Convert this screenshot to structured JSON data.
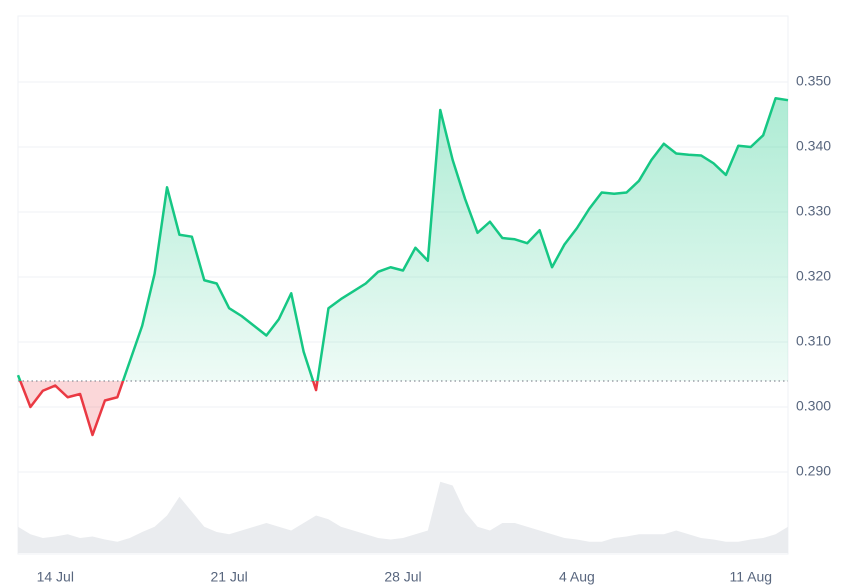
{
  "chart_data": {
    "type": "line",
    "categories": [
      null,
      null,
      null,
      "14 Jul",
      null,
      null,
      null,
      null,
      null,
      null,
      null,
      null,
      null,
      null,
      null,
      null,
      null,
      "21 Jul",
      null,
      null,
      null,
      null,
      null,
      null,
      null,
      null,
      null,
      null,
      null,
      null,
      null,
      "28 Jul",
      null,
      null,
      null,
      null,
      null,
      null,
      null,
      null,
      null,
      null,
      null,
      null,
      null,
      "4 Aug",
      null,
      null,
      null,
      null,
      null,
      null,
      null,
      null,
      null,
      null,
      null,
      null,
      null,
      "11 Aug",
      null,
      null,
      null
    ],
    "values": [
      0.3049,
      0.3,
      0.3025,
      0.3033,
      0.3015,
      0.302,
      0.2957,
      0.301,
      0.3015,
      0.307,
      0.3125,
      0.3205,
      0.3338,
      0.3265,
      0.3262,
      0.3195,
      0.319,
      0.3152,
      0.314,
      0.3125,
      0.311,
      0.3135,
      0.3175,
      0.3085,
      0.3026,
      0.3152,
      0.3166,
      0.3178,
      0.319,
      0.3208,
      0.3215,
      0.321,
      0.3245,
      0.3225,
      0.3457,
      0.338,
      0.332,
      0.3268,
      0.3285,
      0.326,
      0.3258,
      0.3252,
      0.3272,
      0.3215,
      0.325,
      0.3275,
      0.3305,
      0.333,
      0.3328,
      0.333,
      0.3348,
      0.338,
      0.3405,
      0.339,
      0.3388,
      0.3387,
      0.3375,
      0.3357,
      0.3402,
      0.34,
      0.3418,
      0.3475,
      0.3472
    ],
    "baseline": 0.304,
    "color_up": "#16c784",
    "color_down": "#ea3943",
    "ylim": [
      0.28,
      0.36
    ],
    "yticks": [
      {
        "value": 0.29,
        "label": "0.290"
      },
      {
        "value": 0.3,
        "label": "0.300"
      },
      {
        "value": 0.31,
        "label": "0.310"
      },
      {
        "value": 0.32,
        "label": "0.320"
      },
      {
        "value": 0.33,
        "label": "0.330"
      },
      {
        "value": 0.34,
        "label": "0.340"
      },
      {
        "value": 0.35,
        "label": "0.350"
      }
    ],
    "grid": true,
    "volume": {
      "color": "#eaecef",
      "ylim": [
        0,
        100
      ],
      "values": [
        35,
        25,
        20,
        22,
        25,
        20,
        22,
        18,
        15,
        20,
        28,
        35,
        50,
        75,
        55,
        35,
        28,
        25,
        30,
        35,
        40,
        35,
        30,
        40,
        50,
        45,
        35,
        30,
        25,
        20,
        18,
        20,
        25,
        30,
        95,
        90,
        55,
        35,
        30,
        40,
        40,
        35,
        30,
        25,
        20,
        18,
        15,
        15,
        20,
        22,
        25,
        25,
        25,
        30,
        25,
        20,
        18,
        15,
        15,
        18,
        20,
        25,
        35
      ]
    }
  }
}
